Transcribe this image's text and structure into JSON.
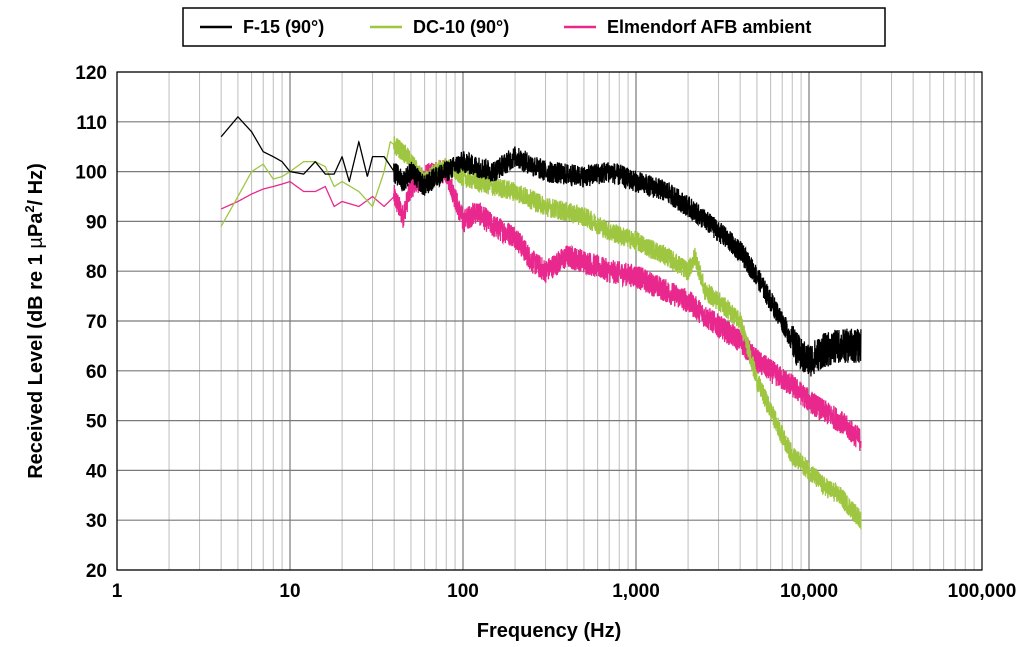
{
  "chart_data": {
    "type": "line",
    "xlabel": "Frequency (Hz)",
    "ylabel": "Received Level (dB re 1 µPa²/ Hz)",
    "ylabel_parts": {
      "pre": "Received Level (dB re 1 ",
      "mu": "µ",
      "pa": "Pa",
      "sup": "2",
      "post": "/ Hz)"
    },
    "x_scale": "log",
    "xlim": [
      1,
      100000
    ],
    "ylim": [
      20,
      120
    ],
    "grid": true,
    "legend_position": "top",
    "x_tick_labels": [
      "1",
      "10",
      "100",
      "1,000",
      "10,000",
      "100,000"
    ],
    "y_tick_labels": [
      "20",
      "30",
      "40",
      "50",
      "60",
      "70",
      "80",
      "90",
      "100",
      "110",
      "120"
    ],
    "series": [
      {
        "name": "F-15 (90°)",
        "color": "#000000",
        "points": [
          [
            4,
            107
          ],
          [
            5,
            111
          ],
          [
            6,
            108
          ],
          [
            7,
            104
          ],
          [
            8,
            103
          ],
          [
            9,
            102
          ],
          [
            10,
            100
          ],
          [
            12,
            99.5
          ],
          [
            14,
            102
          ],
          [
            16,
            99.5
          ],
          [
            18,
            99.5
          ],
          [
            20,
            103
          ],
          [
            22,
            98
          ],
          [
            25,
            106
          ],
          [
            28,
            99
          ],
          [
            30,
            103
          ],
          [
            35,
            103
          ],
          [
            40,
            100
          ],
          [
            45,
            98
          ],
          [
            50,
            100
          ],
          [
            60,
            97
          ],
          [
            70,
            99
          ],
          [
            80,
            100
          ],
          [
            100,
            102
          ],
          [
            120,
            101
          ],
          [
            150,
            100
          ],
          [
            200,
            103
          ],
          [
            300,
            100
          ],
          [
            500,
            99
          ],
          [
            700,
            100
          ],
          [
            1000,
            98
          ],
          [
            1500,
            96
          ],
          [
            2000,
            93
          ],
          [
            3000,
            88
          ],
          [
            4000,
            84
          ],
          [
            5000,
            79
          ],
          [
            6000,
            74
          ],
          [
            7000,
            70
          ],
          [
            8000,
            66
          ],
          [
            9000,
            63
          ],
          [
            10000,
            62
          ],
          [
            12000,
            64
          ],
          [
            15000,
            65
          ],
          [
            20000,
            65
          ]
        ]
      },
      {
        "name": "DC-10 (90°)",
        "color": "#9ec641",
        "points": [
          [
            4,
            89
          ],
          [
            5,
            95
          ],
          [
            6,
            100
          ],
          [
            7,
            101.5
          ],
          [
            8,
            98.5
          ],
          [
            9,
            99
          ],
          [
            10,
            100
          ],
          [
            12,
            102
          ],
          [
            14,
            102
          ],
          [
            16,
            101
          ],
          [
            18,
            97
          ],
          [
            20,
            98
          ],
          [
            25,
            96
          ],
          [
            30,
            93
          ],
          [
            35,
            100
          ],
          [
            38,
            106
          ],
          [
            45,
            104
          ],
          [
            50,
            102
          ],
          [
            60,
            98
          ],
          [
            70,
            100
          ],
          [
            80,
            101
          ],
          [
            100,
            99
          ],
          [
            120,
            98
          ],
          [
            150,
            97
          ],
          [
            200,
            96
          ],
          [
            300,
            93
          ],
          [
            500,
            91
          ],
          [
            700,
            88
          ],
          [
            1000,
            86
          ],
          [
            1500,
            83
          ],
          [
            2000,
            80
          ],
          [
            2200,
            83
          ],
          [
            2500,
            76
          ],
          [
            3000,
            74
          ],
          [
            4000,
            70
          ],
          [
            4500,
            64
          ],
          [
            5000,
            58
          ],
          [
            6000,
            52
          ],
          [
            7000,
            47
          ],
          [
            8000,
            43
          ],
          [
            10000,
            40
          ],
          [
            12000,
            37
          ],
          [
            15000,
            35
          ],
          [
            20000,
            30
          ]
        ]
      },
      {
        "name": "Elmendorf AFB ambient",
        "color": "#e8288c",
        "points": [
          [
            4,
            92.5
          ],
          [
            5,
            94
          ],
          [
            6,
            95.5
          ],
          [
            7,
            96.5
          ],
          [
            8,
            97
          ],
          [
            9,
            97.5
          ],
          [
            10,
            98
          ],
          [
            12,
            96
          ],
          [
            14,
            96
          ],
          [
            16,
            97
          ],
          [
            18,
            93
          ],
          [
            20,
            94
          ],
          [
            25,
            93
          ],
          [
            30,
            95
          ],
          [
            35,
            93
          ],
          [
            40,
            95
          ],
          [
            45,
            91
          ],
          [
            50,
            97
          ],
          [
            60,
            99
          ],
          [
            70,
            100
          ],
          [
            80,
            100
          ],
          [
            100,
            90
          ],
          [
            120,
            92
          ],
          [
            150,
            89
          ],
          [
            200,
            87
          ],
          [
            250,
            82
          ],
          [
            300,
            80
          ],
          [
            400,
            83
          ],
          [
            500,
            82
          ],
          [
            700,
            80
          ],
          [
            1000,
            79
          ],
          [
            1500,
            76
          ],
          [
            2000,
            74
          ],
          [
            2500,
            71
          ],
          [
            3000,
            69
          ],
          [
            4000,
            66
          ],
          [
            5000,
            62
          ],
          [
            6000,
            60
          ],
          [
            8000,
            57
          ],
          [
            10000,
            54
          ],
          [
            12000,
            52
          ],
          [
            15000,
            50
          ],
          [
            20000,
            46
          ]
        ]
      }
    ]
  }
}
